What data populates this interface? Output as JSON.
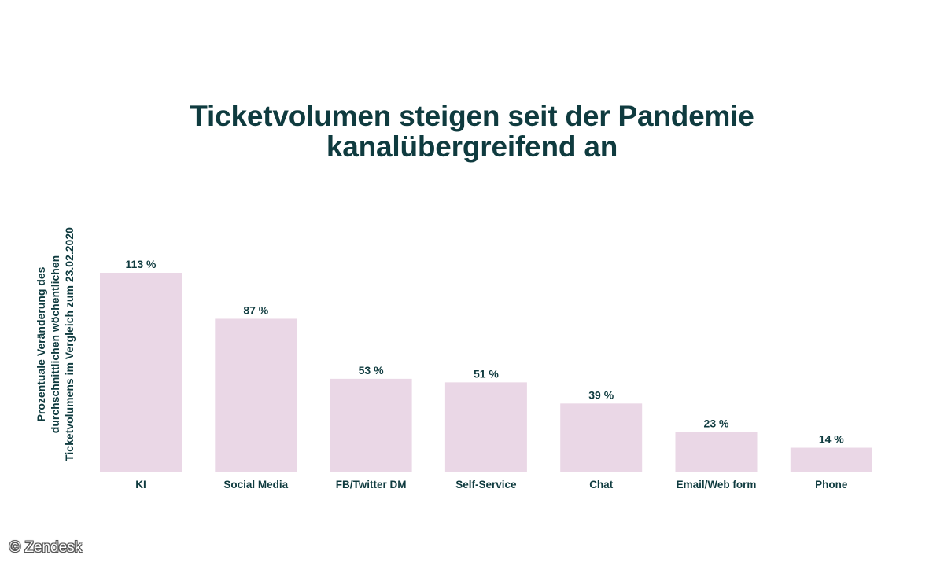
{
  "chart_data": {
    "type": "bar",
    "title": [
      "Ticketvolumen steigen seit der Pandemie",
      "kanalübergreifend an"
    ],
    "ylabel": "Prozentuale Veränderung des durchschnittlichen wöchentlichen Ticketvolumens im Vergleich zum 23.02.2020",
    "xlabel": "",
    "categories": [
      "KI",
      "Social Media",
      "FB/Twitter DM",
      "Self-Service",
      "Chat",
      "Email/Web form",
      "Phone"
    ],
    "values": [
      113,
      87,
      53,
      51,
      39,
      23,
      14
    ],
    "value_labels": [
      "113 %",
      "87 %",
      "53 %",
      "51 %",
      "39 %",
      "23 %",
      "14 %"
    ],
    "unit": "%",
    "ylim": [
      0,
      113
    ],
    "grid": false,
    "colors": {
      "bar": "#ead7e6",
      "text": "#0f3b3f"
    }
  },
  "watermark": "© Zendesk"
}
